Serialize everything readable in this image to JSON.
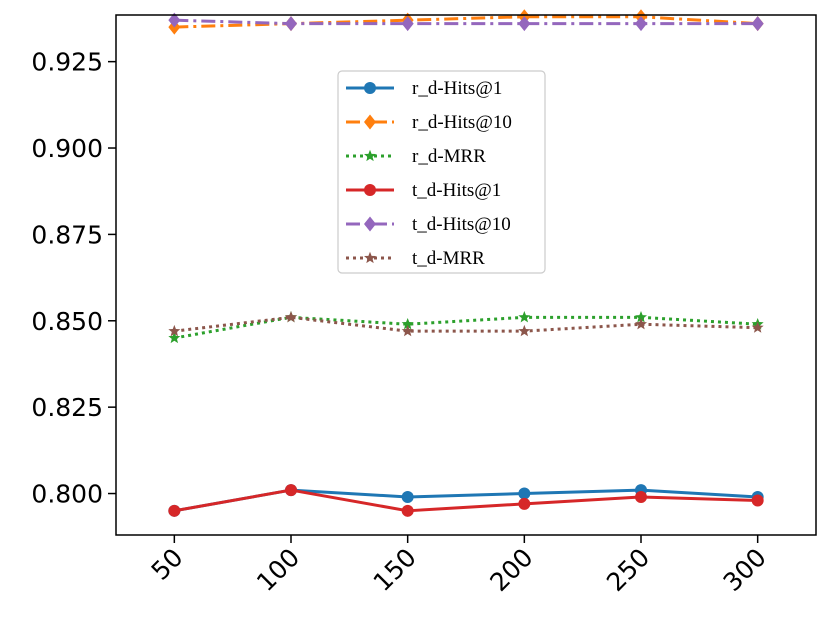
{
  "chart_data": {
    "type": "line",
    "title": "",
    "xlabel": "",
    "ylabel": "",
    "x": [
      50,
      100,
      150,
      200,
      250,
      300
    ],
    "x_tick_labels": [
      "50",
      "100",
      "150",
      "200",
      "250",
      "300"
    ],
    "y_ticks": [
      0.8,
      0.825,
      0.85,
      0.875,
      0.9,
      0.925
    ],
    "y_tick_labels": [
      "0.800",
      "0.825",
      "0.850",
      "0.875",
      "0.900",
      "0.925"
    ],
    "xlim": [
      25,
      325
    ],
    "ylim": [
      0.788,
      0.9385
    ],
    "grid": false,
    "legend_position": "upper-center",
    "series": [
      {
        "name": "r_d-Hits@1",
        "values": [
          0.795,
          0.801,
          0.799,
          0.8,
          0.801,
          0.799
        ],
        "color": "#1f77b4",
        "dash": "solid",
        "marker": "circle"
      },
      {
        "name": "r_d-Hits@10",
        "values": [
          0.935,
          0.936,
          0.937,
          0.938,
          0.938,
          0.936
        ],
        "color": "#ff7f0e",
        "dash": "dashdot",
        "marker": "diamond"
      },
      {
        "name": "r_d-MRR",
        "values": [
          0.845,
          0.851,
          0.849,
          0.851,
          0.851,
          0.849
        ],
        "color": "#2ca02c",
        "dash": "dotted",
        "marker": "star"
      },
      {
        "name": "t_d-Hits@1",
        "values": [
          0.795,
          0.801,
          0.795,
          0.797,
          0.799,
          0.798
        ],
        "color": "#d62728",
        "dash": "solid",
        "marker": "circle"
      },
      {
        "name": "t_d-Hits@10",
        "values": [
          0.937,
          0.936,
          0.936,
          0.936,
          0.936,
          0.936
        ],
        "color": "#9467bd",
        "dash": "dashdot",
        "marker": "diamond"
      },
      {
        "name": "t_d-MRR",
        "values": [
          0.847,
          0.851,
          0.847,
          0.847,
          0.849,
          0.848
        ],
        "color": "#8c564b",
        "dash": "dotted",
        "marker": "star"
      }
    ]
  }
}
